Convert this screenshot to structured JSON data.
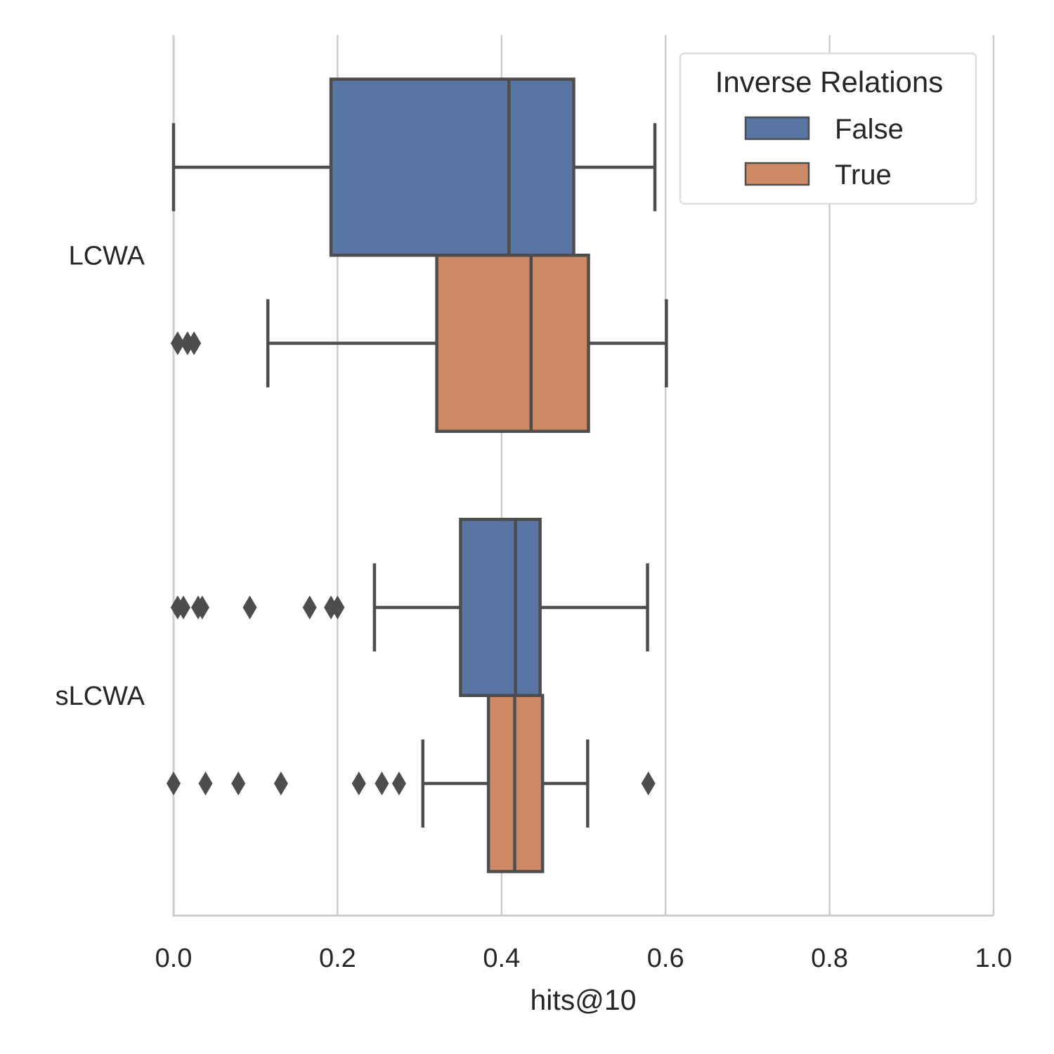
{
  "chart_data": {
    "type": "boxplot",
    "orientation": "horizontal",
    "xlabel": "hits@10",
    "ylabel": "",
    "xlim": [
      0.0,
      1.0
    ],
    "x_ticks": [
      0.0,
      0.2,
      0.4,
      0.6,
      0.8,
      1.0
    ],
    "x_tick_labels": [
      "0.0",
      "0.2",
      "0.4",
      "0.6",
      "0.8",
      "1.0"
    ],
    "grid": "vertical",
    "categories": [
      "LCWA",
      "sLCWA"
    ],
    "legend": {
      "title": "Inverse Relations",
      "placement": "top-right",
      "entries": [
        "False",
        "True"
      ]
    },
    "series": [
      {
        "name": "False",
        "color": "#5875a4",
        "boxes": [
          {
            "category": "LCWA",
            "whisker_low": 0.0,
            "q1": 0.192,
            "median": 0.409,
            "q3": 0.488,
            "whisker_high": 0.587,
            "outliers": []
          },
          {
            "category": "sLCWA",
            "whisker_low": 0.245,
            "q1": 0.35,
            "median": 0.417,
            "q3": 0.447,
            "whisker_high": 0.578,
            "outliers": [
              0.005,
              0.012,
              0.03,
              0.035,
              0.093,
              0.166,
              0.192,
              0.2
            ]
          }
        ]
      },
      {
        "name": "True",
        "color": "#cc8963",
        "boxes": [
          {
            "category": "LCWA",
            "whisker_low": 0.115,
            "q1": 0.321,
            "median": 0.436,
            "q3": 0.506,
            "whisker_high": 0.601,
            "outliers": [
              0.005,
              0.017,
              0.025
            ]
          },
          {
            "category": "sLCWA",
            "whisker_low": 0.304,
            "q1": 0.384,
            "median": 0.416,
            "q3": 0.45,
            "whisker_high": 0.505,
            "outliers": [
              0.0,
              0.039,
              0.079,
              0.131,
              0.226,
              0.254,
              0.275,
              0.579
            ]
          }
        ]
      }
    ]
  }
}
